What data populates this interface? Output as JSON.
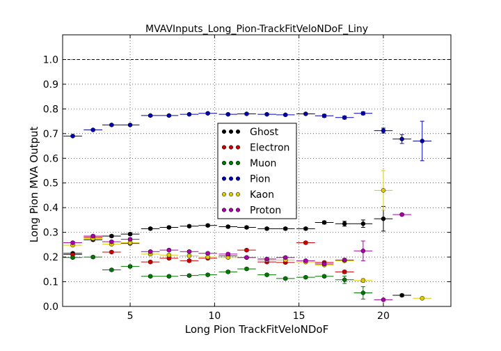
{
  "chart_data": {
    "type": "scatter",
    "title": "MVAVInputs_Long_Pion-TrackFitVeloNDoF_Liny",
    "xlabel": "Long Pion TrackFitVeloNDoF",
    "ylabel": "Long Pion MVA Output",
    "xlim": [
      1,
      24
    ],
    "ylim": [
      0.0,
      1.1
    ],
    "xticks": [
      "5",
      "10",
      "15",
      "20"
    ],
    "yticks": [
      "0.0",
      "0.1",
      "0.2",
      "0.3",
      "0.4",
      "0.5",
      "0.6",
      "0.7",
      "0.8",
      "0.9",
      "1.0"
    ],
    "grid": true,
    "reference_line": 1.0,
    "legend_position": "center",
    "series": [
      {
        "name": "Ghost",
        "color": "#000000",
        "points": [
          {
            "x": 1.6,
            "y": 0.215,
            "xerr": 0.55,
            "yerr": 0.005
          },
          {
            "x": 2.8,
            "y": 0.27,
            "xerr": 0.55,
            "yerr": 0.005
          },
          {
            "x": 3.9,
            "y": 0.285,
            "xerr": 0.55,
            "yerr": 0.005
          },
          {
            "x": 5.0,
            "y": 0.293,
            "xerr": 0.55,
            "yerr": 0.005
          },
          {
            "x": 6.2,
            "y": 0.315,
            "xerr": 0.55,
            "yerr": 0.005
          },
          {
            "x": 7.3,
            "y": 0.32,
            "xerr": 0.55,
            "yerr": 0.005
          },
          {
            "x": 8.5,
            "y": 0.325,
            "xerr": 0.55,
            "yerr": 0.005
          },
          {
            "x": 9.6,
            "y": 0.328,
            "xerr": 0.55,
            "yerr": 0.005
          },
          {
            "x": 10.8,
            "y": 0.323,
            "xerr": 0.55,
            "yerr": 0.005
          },
          {
            "x": 11.9,
            "y": 0.32,
            "xerr": 0.55,
            "yerr": 0.005
          },
          {
            "x": 13.1,
            "y": 0.315,
            "xerr": 0.55,
            "yerr": 0.005
          },
          {
            "x": 14.2,
            "y": 0.315,
            "xerr": 0.55,
            "yerr": 0.005
          },
          {
            "x": 15.4,
            "y": 0.315,
            "xerr": 0.55,
            "yerr": 0.005
          },
          {
            "x": 16.5,
            "y": 0.34,
            "xerr": 0.55,
            "yerr": 0.006
          },
          {
            "x": 17.7,
            "y": 0.335,
            "xerr": 0.55,
            "yerr": 0.01
          },
          {
            "x": 18.8,
            "y": 0.335,
            "xerr": 0.55,
            "yerr": 0.015
          },
          {
            "x": 20.0,
            "y": 0.355,
            "xerr": 0.55,
            "yerr": 0.05
          },
          {
            "x": 21.1,
            "y": 0.045,
            "xerr": 0.55,
            "yerr": 0.005
          }
        ]
      },
      {
        "name": "Electron",
        "color": "#cc0000",
        "points": [
          {
            "x": 1.6,
            "y": 0.21,
            "xerr": 0.55,
            "yerr": 0.005
          },
          {
            "x": 2.8,
            "y": 0.28,
            "xerr": 0.55,
            "yerr": 0.005
          },
          {
            "x": 3.9,
            "y": 0.22,
            "xerr": 0.55,
            "yerr": 0.005
          },
          {
            "x": 5.0,
            "y": 0.255,
            "xerr": 0.55,
            "yerr": 0.005
          },
          {
            "x": 6.2,
            "y": 0.18,
            "xerr": 0.55,
            "yerr": 0.005
          },
          {
            "x": 7.3,
            "y": 0.195,
            "xerr": 0.55,
            "yerr": 0.005
          },
          {
            "x": 8.5,
            "y": 0.185,
            "xerr": 0.55,
            "yerr": 0.005
          },
          {
            "x": 9.6,
            "y": 0.195,
            "xerr": 0.55,
            "yerr": 0.005
          },
          {
            "x": 10.8,
            "y": 0.205,
            "xerr": 0.55,
            "yerr": 0.005
          },
          {
            "x": 11.9,
            "y": 0.228,
            "xerr": 0.55,
            "yerr": 0.005
          },
          {
            "x": 13.1,
            "y": 0.18,
            "xerr": 0.55,
            "yerr": 0.005
          },
          {
            "x": 14.2,
            "y": 0.178,
            "xerr": 0.55,
            "yerr": 0.005
          },
          {
            "x": 15.4,
            "y": 0.258,
            "xerr": 0.55,
            "yerr": 0.005
          },
          {
            "x": 16.5,
            "y": 0.178,
            "xerr": 0.55,
            "yerr": 0.005
          },
          {
            "x": 17.7,
            "y": 0.14,
            "xerr": 0.55,
            "yerr": 0.006
          }
        ]
      },
      {
        "name": "Muon",
        "color": "#007700",
        "points": [
          {
            "x": 1.6,
            "y": 0.198,
            "xerr": 0.55,
            "yerr": 0.005
          },
          {
            "x": 2.8,
            "y": 0.2,
            "xerr": 0.55,
            "yerr": 0.005
          },
          {
            "x": 3.9,
            "y": 0.148,
            "xerr": 0.55,
            "yerr": 0.005
          },
          {
            "x": 5.0,
            "y": 0.162,
            "xerr": 0.55,
            "yerr": 0.005
          },
          {
            "x": 6.2,
            "y": 0.122,
            "xerr": 0.55,
            "yerr": 0.005
          },
          {
            "x": 7.3,
            "y": 0.122,
            "xerr": 0.55,
            "yerr": 0.005
          },
          {
            "x": 8.5,
            "y": 0.125,
            "xerr": 0.55,
            "yerr": 0.005
          },
          {
            "x": 9.6,
            "y": 0.128,
            "xerr": 0.55,
            "yerr": 0.005
          },
          {
            "x": 10.8,
            "y": 0.14,
            "xerr": 0.55,
            "yerr": 0.005
          },
          {
            "x": 11.9,
            "y": 0.152,
            "xerr": 0.55,
            "yerr": 0.005
          },
          {
            "x": 13.1,
            "y": 0.128,
            "xerr": 0.55,
            "yerr": 0.005
          },
          {
            "x": 14.2,
            "y": 0.113,
            "xerr": 0.55,
            "yerr": 0.005
          },
          {
            "x": 15.4,
            "y": 0.118,
            "xerr": 0.55,
            "yerr": 0.005
          },
          {
            "x": 16.5,
            "y": 0.122,
            "xerr": 0.55,
            "yerr": 0.005
          },
          {
            "x": 17.7,
            "y": 0.108,
            "xerr": 0.55,
            "yerr": 0.015
          },
          {
            "x": 18.8,
            "y": 0.055,
            "xerr": 0.55,
            "yerr": 0.025
          }
        ]
      },
      {
        "name": "Pion",
        "color": "#0000aa",
        "points": [
          {
            "x": 1.6,
            "y": 0.69,
            "xerr": 0.55,
            "yerr": 0.004
          },
          {
            "x": 2.8,
            "y": 0.715,
            "xerr": 0.55,
            "yerr": 0.004
          },
          {
            "x": 3.9,
            "y": 0.735,
            "xerr": 0.55,
            "yerr": 0.004
          },
          {
            "x": 5.0,
            "y": 0.735,
            "xerr": 0.55,
            "yerr": 0.004
          },
          {
            "x": 6.2,
            "y": 0.773,
            "xerr": 0.55,
            "yerr": 0.004
          },
          {
            "x": 7.3,
            "y": 0.773,
            "xerr": 0.55,
            "yerr": 0.004
          },
          {
            "x": 8.5,
            "y": 0.778,
            "xerr": 0.55,
            "yerr": 0.004
          },
          {
            "x": 9.6,
            "y": 0.782,
            "xerr": 0.55,
            "yerr": 0.004
          },
          {
            "x": 10.8,
            "y": 0.778,
            "xerr": 0.55,
            "yerr": 0.004
          },
          {
            "x": 11.9,
            "y": 0.78,
            "xerr": 0.55,
            "yerr": 0.004
          },
          {
            "x": 13.1,
            "y": 0.778,
            "xerr": 0.55,
            "yerr": 0.004
          },
          {
            "x": 14.2,
            "y": 0.776,
            "xerr": 0.55,
            "yerr": 0.004
          },
          {
            "x": 15.4,
            "y": 0.78,
            "xerr": 0.55,
            "yerr": 0.004
          },
          {
            "x": 16.5,
            "y": 0.772,
            "xerr": 0.55,
            "yerr": 0.006
          },
          {
            "x": 17.7,
            "y": 0.765,
            "xerr": 0.55,
            "yerr": 0.006
          },
          {
            "x": 18.8,
            "y": 0.782,
            "xerr": 0.55,
            "yerr": 0.006
          },
          {
            "x": 20.0,
            "y": 0.712,
            "xerr": 0.55,
            "yerr": 0.01
          },
          {
            "x": 21.1,
            "y": 0.678,
            "xerr": 0.55,
            "yerr": 0.018
          },
          {
            "x": 22.3,
            "y": 0.67,
            "xerr": 0.55,
            "yerr": 0.08
          }
        ]
      },
      {
        "name": "Kaon",
        "color": "#ddcc00",
        "points": [
          {
            "x": 1.6,
            "y": 0.248,
            "xerr": 0.55,
            "yerr": 0.005
          },
          {
            "x": 2.8,
            "y": 0.275,
            "xerr": 0.55,
            "yerr": 0.005
          },
          {
            "x": 3.9,
            "y": 0.252,
            "xerr": 0.55,
            "yerr": 0.005
          },
          {
            "x": 5.0,
            "y": 0.258,
            "xerr": 0.55,
            "yerr": 0.005
          },
          {
            "x": 6.2,
            "y": 0.212,
            "xerr": 0.55,
            "yerr": 0.005
          },
          {
            "x": 7.3,
            "y": 0.208,
            "xerr": 0.55,
            "yerr": 0.005
          },
          {
            "x": 8.5,
            "y": 0.205,
            "xerr": 0.55,
            "yerr": 0.005
          },
          {
            "x": 9.6,
            "y": 0.2,
            "xerr": 0.55,
            "yerr": 0.005
          },
          {
            "x": 10.8,
            "y": 0.198,
            "xerr": 0.55,
            "yerr": 0.005
          },
          {
            "x": 11.9,
            "y": 0.198,
            "xerr": 0.55,
            "yerr": 0.005
          },
          {
            "x": 13.1,
            "y": 0.188,
            "xerr": 0.55,
            "yerr": 0.005
          },
          {
            "x": 14.2,
            "y": 0.188,
            "xerr": 0.55,
            "yerr": 0.005
          },
          {
            "x": 15.4,
            "y": 0.18,
            "xerr": 0.55,
            "yerr": 0.005
          },
          {
            "x": 16.5,
            "y": 0.168,
            "xerr": 0.55,
            "yerr": 0.005
          },
          {
            "x": 17.7,
            "y": 0.185,
            "xerr": 0.55,
            "yerr": 0.006
          },
          {
            "x": 18.8,
            "y": 0.105,
            "xerr": 0.55,
            "yerr": 0.008
          },
          {
            "x": 20.0,
            "y": 0.47,
            "xerr": 0.55,
            "yerr": 0.08
          },
          {
            "x": 22.3,
            "y": 0.033,
            "xerr": 0.55,
            "yerr": 0.004
          }
        ]
      },
      {
        "name": "Proton",
        "color": "#aa00aa",
        "points": [
          {
            "x": 1.6,
            "y": 0.258,
            "xerr": 0.55,
            "yerr": 0.005
          },
          {
            "x": 2.8,
            "y": 0.285,
            "xerr": 0.55,
            "yerr": 0.005
          },
          {
            "x": 3.9,
            "y": 0.262,
            "xerr": 0.55,
            "yerr": 0.005
          },
          {
            "x": 5.0,
            "y": 0.272,
            "xerr": 0.55,
            "yerr": 0.005
          },
          {
            "x": 6.2,
            "y": 0.222,
            "xerr": 0.55,
            "yerr": 0.005
          },
          {
            "x": 7.3,
            "y": 0.228,
            "xerr": 0.55,
            "yerr": 0.005
          },
          {
            "x": 8.5,
            "y": 0.222,
            "xerr": 0.55,
            "yerr": 0.005
          },
          {
            "x": 9.6,
            "y": 0.215,
            "xerr": 0.55,
            "yerr": 0.005
          },
          {
            "x": 10.8,
            "y": 0.212,
            "xerr": 0.55,
            "yerr": 0.005
          },
          {
            "x": 11.9,
            "y": 0.198,
            "xerr": 0.55,
            "yerr": 0.005
          },
          {
            "x": 13.1,
            "y": 0.192,
            "xerr": 0.55,
            "yerr": 0.005
          },
          {
            "x": 14.2,
            "y": 0.198,
            "xerr": 0.55,
            "yerr": 0.005
          },
          {
            "x": 15.4,
            "y": 0.185,
            "xerr": 0.55,
            "yerr": 0.005
          },
          {
            "x": 16.5,
            "y": 0.172,
            "xerr": 0.55,
            "yerr": 0.005
          },
          {
            "x": 17.7,
            "y": 0.188,
            "xerr": 0.55,
            "yerr": 0.006
          },
          {
            "x": 18.8,
            "y": 0.225,
            "xerr": 0.55,
            "yerr": 0.04
          },
          {
            "x": 20.0,
            "y": 0.027,
            "xerr": 0.55,
            "yerr": 0.004
          },
          {
            "x": 21.1,
            "y": 0.372,
            "xerr": 0.55,
            "yerr": 0.005
          }
        ]
      }
    ]
  }
}
